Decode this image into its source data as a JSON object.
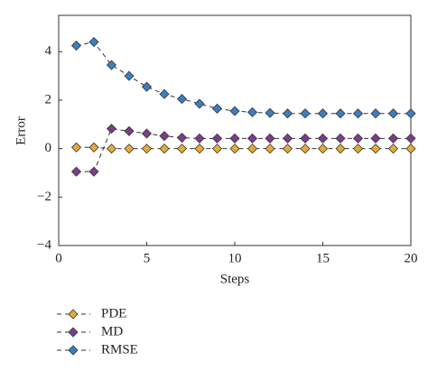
{
  "chart_data": {
    "type": "line",
    "xlabel": "Steps",
    "ylabel": "Error",
    "x": [
      1,
      2,
      3,
      4,
      5,
      6,
      7,
      8,
      9,
      10,
      11,
      12,
      13,
      14,
      15,
      16,
      17,
      18,
      19,
      20
    ],
    "series": [
      {
        "name": "PDE",
        "color": "#e8a93a",
        "values": [
          0.05,
          0.05,
          0,
          0,
          0,
          0,
          0,
          0,
          0,
          0,
          0,
          0,
          0,
          0,
          0,
          0,
          0,
          0,
          0,
          0
        ]
      },
      {
        "name": "MD",
        "color": "#7b3d8c",
        "values": [
          -0.95,
          -0.95,
          0.82,
          0.72,
          0.62,
          0.52,
          0.45,
          0.42,
          0.42,
          0.42,
          0.42,
          0.42,
          0.42,
          0.42,
          0.42,
          0.42,
          0.42,
          0.42,
          0.42,
          0.42
        ]
      },
      {
        "name": "RMSE",
        "color": "#3b7fc0",
        "values": [
          4.25,
          4.4,
          3.45,
          3.0,
          2.55,
          2.25,
          2.05,
          1.85,
          1.65,
          1.55,
          1.5,
          1.47,
          1.45,
          1.45,
          1.45,
          1.45,
          1.45,
          1.45,
          1.45,
          1.45
        ]
      }
    ],
    "xlim": [
      0,
      20
    ],
    "ylim": [
      -4,
      5.5
    ],
    "xticks": [
      0,
      5,
      10,
      15,
      20
    ],
    "yticks": [
      {
        "value": -4,
        "label": "−4"
      },
      {
        "value": -2,
        "label": "−2"
      },
      0,
      2,
      4
    ]
  }
}
